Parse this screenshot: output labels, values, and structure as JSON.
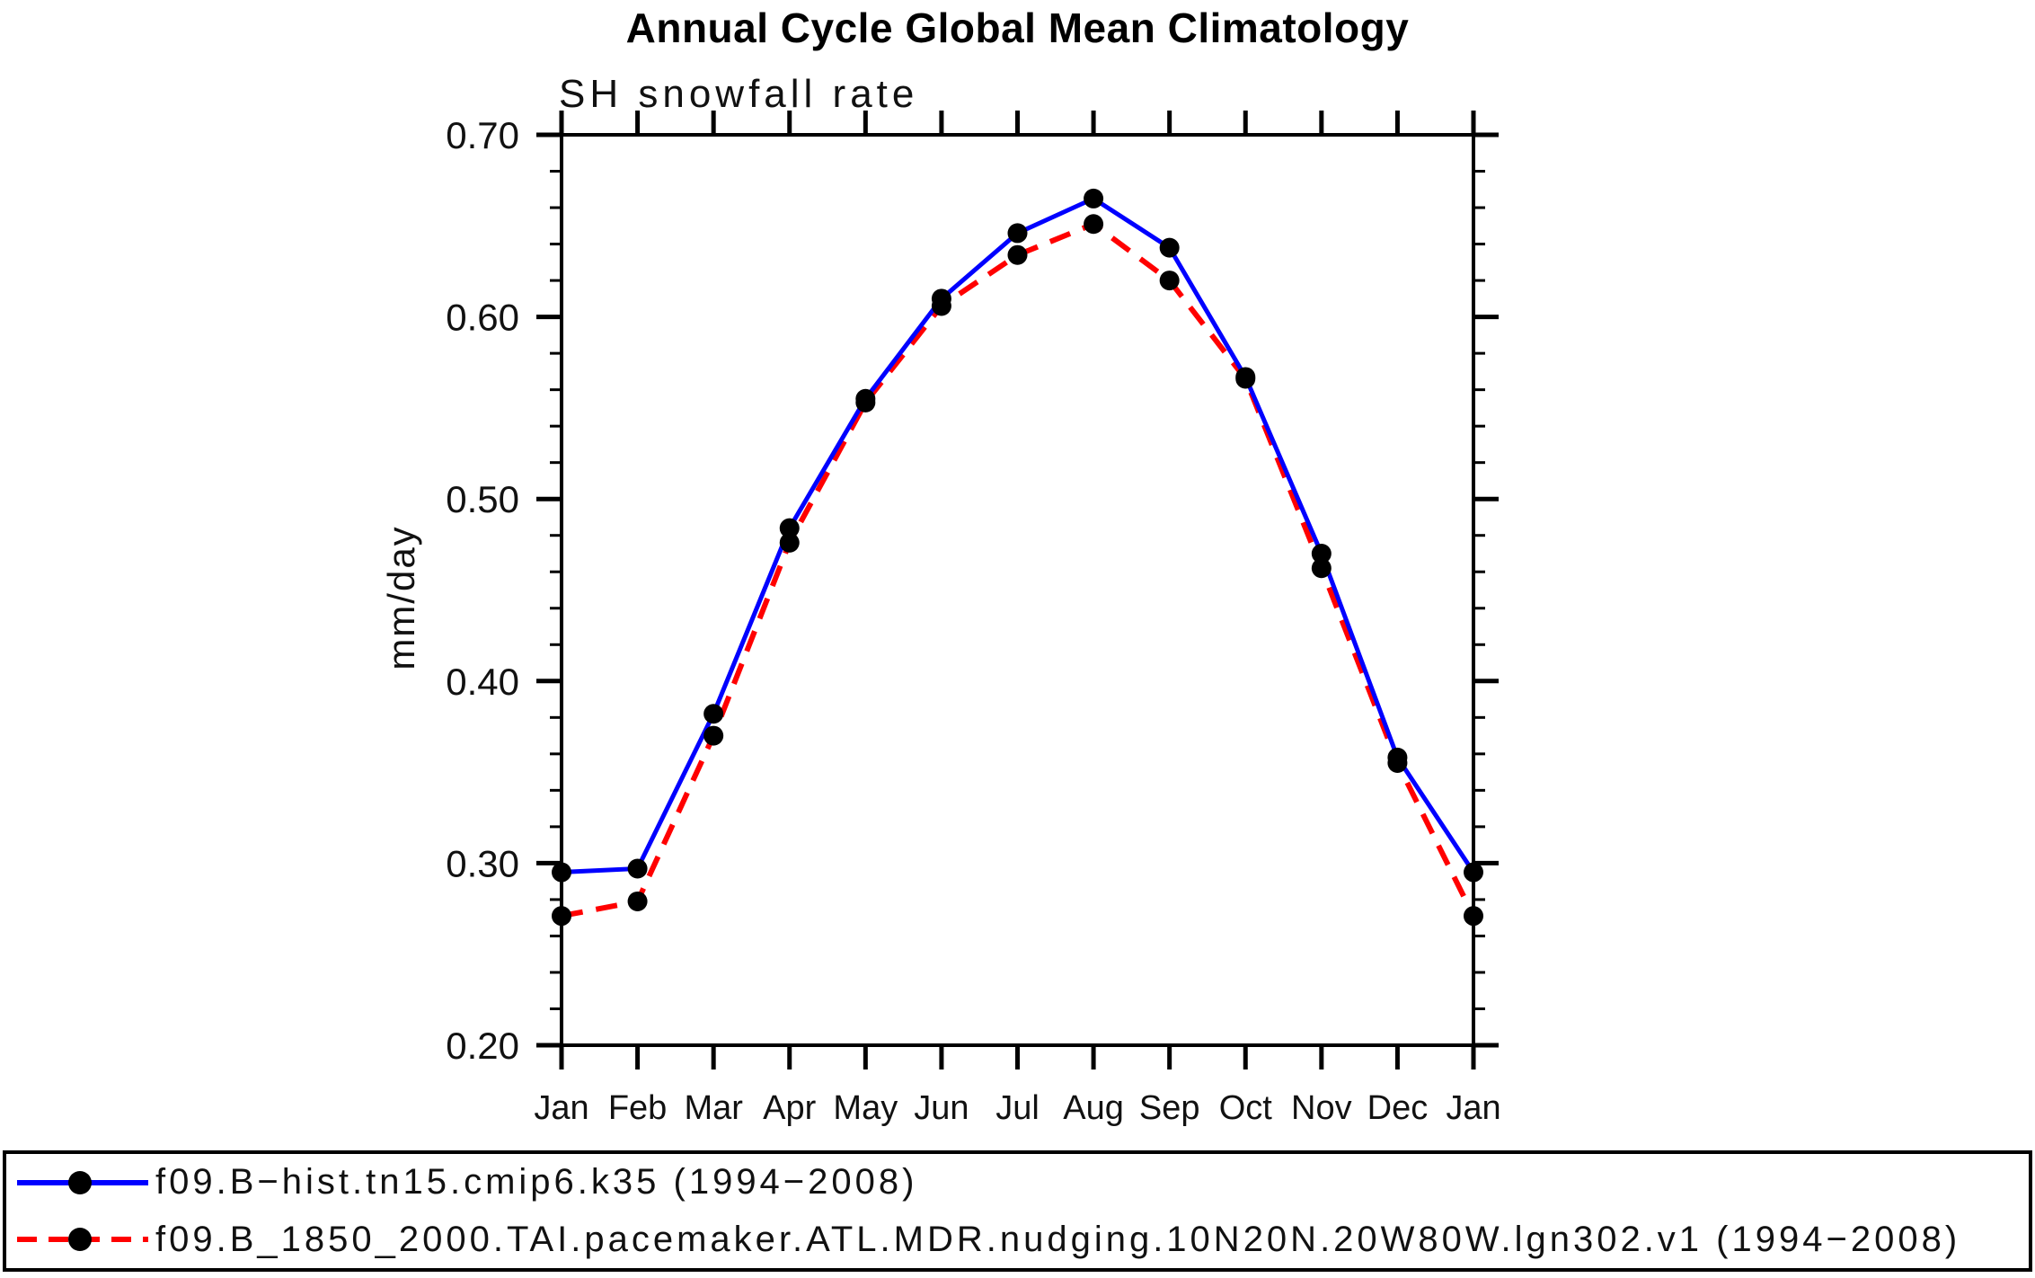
{
  "chart_data": {
    "type": "line",
    "title": "Annual Cycle Global Mean Climatology",
    "subtitle": "SH snowfall rate",
    "ylabel": "mm/day",
    "categories": [
      "Jan",
      "Feb",
      "Mar",
      "Apr",
      "May",
      "Jun",
      "Jul",
      "Aug",
      "Sep",
      "Oct",
      "Nov",
      "Dec",
      "Jan"
    ],
    "ylim": [
      0.2,
      0.7
    ],
    "yticks": [
      0.2,
      0.3,
      0.4,
      0.5,
      0.6,
      0.7
    ],
    "ytick_labels": [
      "0.20",
      "0.30",
      "0.40",
      "0.50",
      "0.60",
      "0.70"
    ],
    "y_minor_step": 0.02,
    "grid": false,
    "legend_position": "bottom",
    "axis_color": "#000000",
    "marker_color": "#000000",
    "series": [
      {
        "name": "f09.B−hist.tn15.cmip6.k35 (1994−2008)",
        "color": "#0000ff",
        "line_style": "solid",
        "values": [
          0.295,
          0.297,
          0.382,
          0.484,
          0.555,
          0.61,
          0.646,
          0.665,
          0.638,
          0.567,
          0.47,
          0.358,
          0.295
        ]
      },
      {
        "name": "f09.B_1850_2000.TAI.pacemaker.ATL.MDR.nudging.10N20N.20W80W.lgn302.v1 (1994−2008)",
        "color": "#ff0000",
        "line_style": "dashed",
        "values": [
          0.271,
          0.279,
          0.37,
          0.476,
          0.553,
          0.606,
          0.634,
          0.651,
          0.62,
          0.566,
          0.462,
          0.355,
          0.271
        ]
      }
    ]
  }
}
